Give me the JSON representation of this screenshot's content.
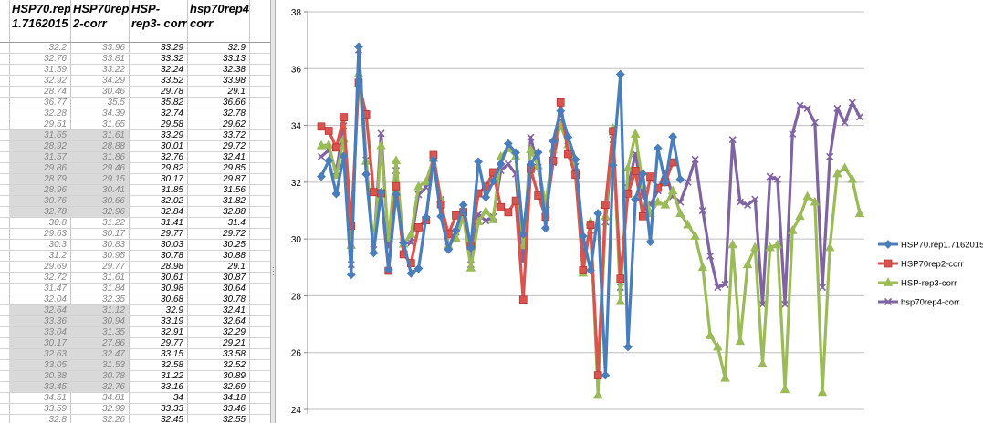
{
  "spreadsheet": {
    "headers": [
      "HSP70.rep 1.7162015",
      "HSP70rep 2-corr",
      "HSP-rep3- corr",
      "hsp70rep4- corr"
    ],
    "rows": [
      [
        "32.2",
        "33.96",
        "33.29",
        "32.9"
      ],
      [
        "32.76",
        "33.81",
        "33.32",
        "33.13"
      ],
      [
        "31.59",
        "33.22",
        "32.24",
        "32.38"
      ],
      [
        "32.92",
        "34.29",
        "33.52",
        "33.98"
      ],
      [
        "28.74",
        "30.46",
        "29.78",
        "29.1"
      ],
      [
        "36.77",
        "35.5",
        "35.82",
        "36.66"
      ],
      [
        "32.28",
        "34.39",
        "32.74",
        "32.78"
      ],
      [
        "29.51",
        "31.65",
        "29.58",
        "29.62"
      ],
      [
        "31.65",
        "31.61",
        "33.29",
        "33.72"
      ],
      [
        "28.92",
        "28.88",
        "30.01",
        "29.72"
      ],
      [
        "31.57",
        "31.86",
        "32.76",
        "32.41"
      ],
      [
        "29.86",
        "29.46",
        "29.82",
        "29.85"
      ],
      [
        "28.79",
        "29.15",
        "30.17",
        "29.87"
      ],
      [
        "28.96",
        "30.41",
        "31.85",
        "31.56"
      ],
      [
        "30.76",
        "30.66",
        "32.02",
        "31.82"
      ],
      [
        "32.78",
        "32.96",
        "32.84",
        "32.88"
      ],
      [
        "30.8",
        "31.22",
        "31.41",
        "31.4"
      ],
      [
        "29.63",
        "30.17",
        "29.77",
        "29.72"
      ],
      [
        "30.3",
        "30.83",
        "30.03",
        "30.25"
      ],
      [
        "31.2",
        "30.95",
        "30.78",
        "30.88"
      ],
      [
        "29.69",
        "29.77",
        "28.98",
        "29.1"
      ],
      [
        "32.72",
        "31.61",
        "30.61",
        "30.87"
      ],
      [
        "31.47",
        "31.84",
        "30.98",
        "30.64"
      ],
      [
        "32.04",
        "32.35",
        "30.68",
        "30.78"
      ],
      [
        "32.64",
        "31.12",
        "32.9",
        "32.41"
      ],
      [
        "33.36",
        "30.94",
        "33.19",
        "32.64"
      ],
      [
        "33.04",
        "31.35",
        "32.91",
        "32.29"
      ],
      [
        "30.17",
        "27.86",
        "29.77",
        "29.21"
      ],
      [
        "32.63",
        "32.47",
        "33.15",
        "33.58"
      ],
      [
        "33.05",
        "31.53",
        "32.58",
        "32.52"
      ],
      [
        "30.38",
        "30.78",
        "31.22",
        "30.89"
      ],
      [
        "33.45",
        "32.76",
        "33.16",
        "32.69"
      ],
      [
        "34.51",
        "34.81",
        "34",
        "34.18"
      ],
      [
        "33.59",
        "32.99",
        "33.33",
        "33.46"
      ],
      [
        "32.8",
        "32.26",
        "32.45",
        "32.55"
      ]
    ],
    "selected_rows": [
      8,
      9,
      10,
      11,
      12,
      13,
      14,
      15,
      24,
      25,
      26,
      27,
      28,
      29,
      30,
      31
    ]
  },
  "chart_data": {
    "type": "line",
    "ylim": [
      24,
      38
    ],
    "yticks": [
      "24",
      "26",
      "28",
      "30",
      "32",
      "34",
      "36",
      "38"
    ],
    "grid": true,
    "legend": "right",
    "series": [
      {
        "name": "HSP70.rep1.7162015",
        "color": "#4a7ebb",
        "marker": "diamond",
        "values": [
          32.2,
          32.76,
          31.59,
          32.92,
          28.74,
          36.77,
          32.28,
          29.51,
          31.65,
          28.92,
          31.57,
          29.86,
          28.79,
          28.96,
          30.76,
          32.78,
          30.8,
          29.63,
          30.3,
          31.2,
          29.69,
          32.72,
          31.47,
          32.04,
          32.64,
          33.36,
          33.04,
          30.17,
          32.63,
          33.05,
          30.38,
          33.45,
          34.51,
          33.59,
          32.8,
          30.1,
          28.9,
          30.9,
          25.2,
          32.6,
          35.8,
          26.2,
          31.4,
          32.3,
          29.9,
          33.2,
          32.0,
          33.6,
          32.1
        ]
      },
      {
        "name": "HSP70rep2-corr",
        "color": "#d9534f",
        "marker": "square",
        "values": [
          33.96,
          33.81,
          33.22,
          34.29,
          30.46,
          35.5,
          34.39,
          31.65,
          31.61,
          28.88,
          31.86,
          29.46,
          29.15,
          30.41,
          30.66,
          32.96,
          31.22,
          30.17,
          30.83,
          30.95,
          29.77,
          31.61,
          31.84,
          32.35,
          31.12,
          30.94,
          31.35,
          27.86,
          32.47,
          31.53,
          30.78,
          32.76,
          34.81,
          32.99,
          32.26,
          28.9,
          30.5,
          25.2,
          31.2,
          33.8,
          28.6,
          31.6,
          32.4,
          30.8,
          32.2,
          31.8,
          32.0,
          32.7
        ]
      },
      {
        "name": "HSP-rep3-corr",
        "color": "#9bbb59",
        "marker": "triangle",
        "values": [
          33.29,
          33.32,
          32.24,
          33.52,
          29.78,
          35.82,
          32.74,
          29.58,
          33.29,
          30.01,
          32.76,
          29.82,
          30.17,
          31.85,
          32.02,
          32.84,
          31.41,
          29.77,
          30.03,
          30.78,
          28.98,
          30.61,
          30.98,
          30.68,
          32.9,
          33.19,
          32.91,
          29.77,
          33.15,
          32.58,
          31.22,
          33.16,
          34.0,
          33.33,
          32.45,
          28.8,
          30.6,
          24.5,
          30.8,
          33.9,
          27.8,
          32.5,
          33.7,
          31.9,
          30.9,
          31.3,
          31.2,
          31.7,
          30.9,
          30.5,
          30.1,
          29.0,
          26.6,
          26.2,
          25.1,
          29.8,
          26.4,
          29.1,
          29.7,
          25.6,
          29.7,
          29.8,
          24.7,
          30.3,
          30.8,
          31.5,
          31.3,
          24.6,
          29.7,
          32.3,
          32.5,
          32.1,
          30.9
        ]
      },
      {
        "name": "hsp70rep4-corr",
        "color": "#8064a2",
        "marker": "x",
        "values": [
          32.9,
          33.13,
          32.38,
          33.98,
          29.1,
          36.66,
          32.78,
          29.62,
          33.72,
          29.72,
          32.41,
          29.85,
          29.87,
          31.56,
          31.82,
          32.88,
          31.4,
          29.72,
          30.25,
          30.88,
          29.1,
          30.87,
          30.64,
          30.78,
          32.41,
          32.64,
          32.29,
          29.21,
          33.58,
          32.52,
          30.89,
          32.69,
          34.18,
          33.46,
          32.55,
          29.4,
          30.3,
          25.2,
          30.6,
          33.5,
          28.3,
          31.8,
          33.0,
          31.5,
          31.2,
          31.7,
          32.4,
          31.5,
          31.3,
          32.0,
          32.8,
          31.0,
          29.4,
          28.3,
          28.4,
          33.5,
          31.3,
          31.2,
          31.4,
          27.7,
          32.2,
          32.1,
          27.7,
          33.7,
          34.7,
          34.6,
          34.1,
          28.3,
          32.9,
          34.6,
          34.1,
          34.8,
          34.3
        ]
      }
    ]
  }
}
